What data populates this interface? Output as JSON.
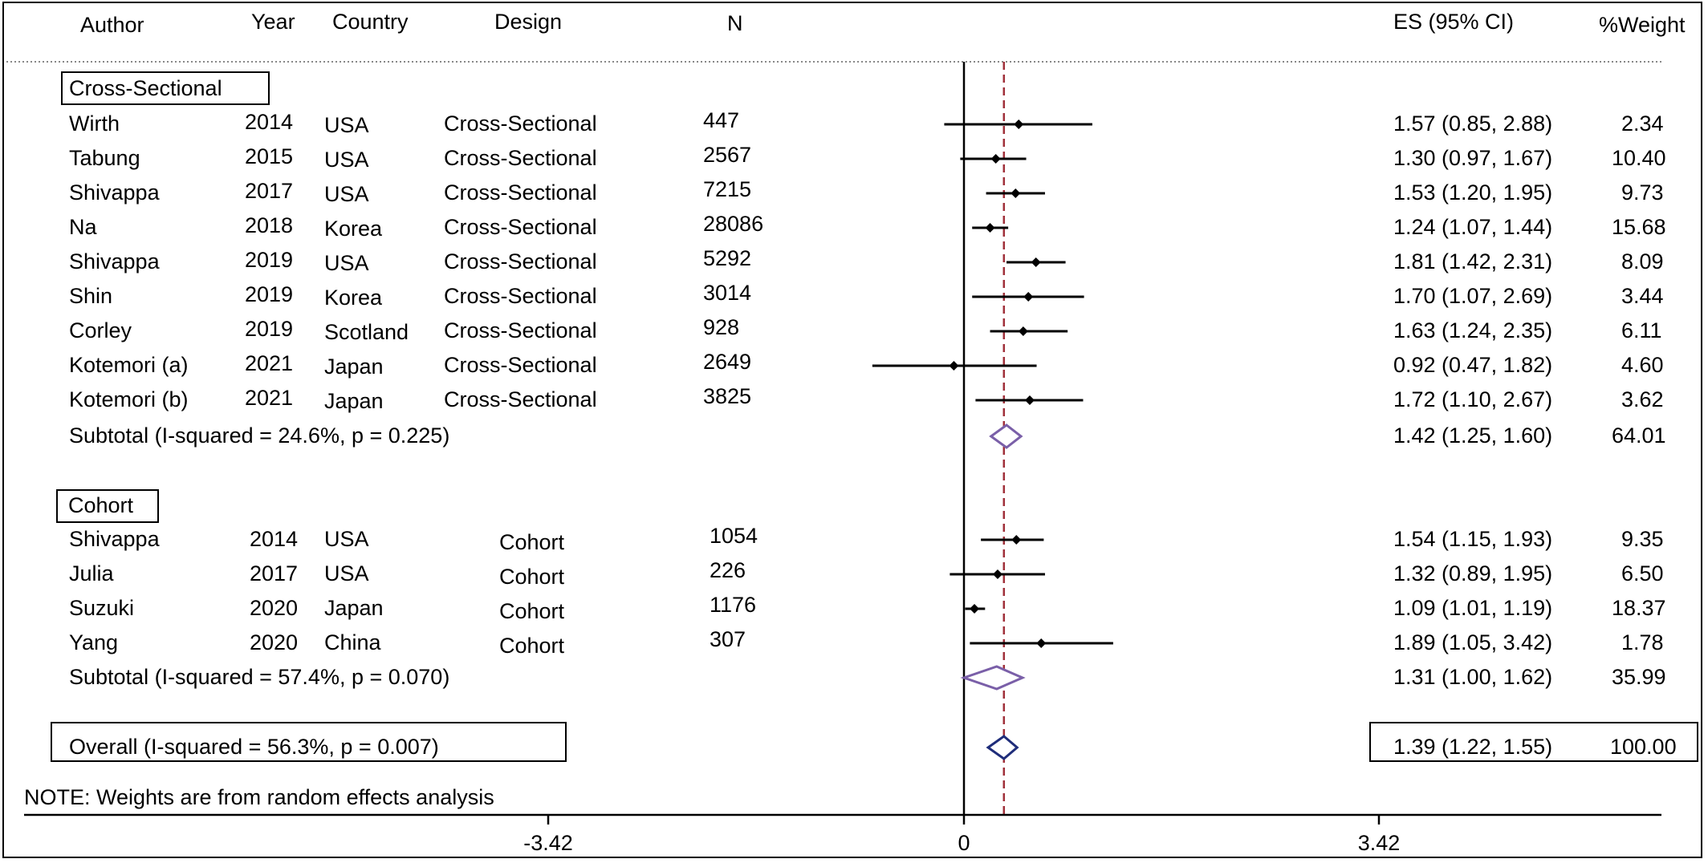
{
  "header": {
    "author": "Author",
    "year": "Year",
    "country": "Country",
    "design": "Design",
    "n": "N",
    "es": "ES (95% CI)",
    "weight": "%Weight"
  },
  "groups": [
    {
      "label": "Cross-Sectional",
      "studies": [
        {
          "author": "Wirth",
          "year": "2014",
          "country": "USA",
          "design": "Cross-Sectional",
          "n": "447",
          "es": "1.57 (0.85, 2.88)",
          "weight": "2.34"
        },
        {
          "author": "Tabung",
          "year": "2015",
          "country": "USA",
          "design": "Cross-Sectional",
          "n": "2567",
          "es": "1.30 (0.97, 1.67)",
          "weight": "10.40"
        },
        {
          "author": "Shivappa",
          "year": "2017",
          "country": "USA",
          "design": "Cross-Sectional",
          "n": "7215",
          "es": "1.53 (1.20, 1.95)",
          "weight": "9.73"
        },
        {
          "author": "Na",
          "year": "2018",
          "country": "Korea",
          "design": "Cross-Sectional",
          "n": "28086",
          "es": "1.24 (1.07, 1.44)",
          "weight": "15.68"
        },
        {
          "author": "Shivappa",
          "year": "2019",
          "country": "USA",
          "design": "Cross-Sectional",
          "n": "5292",
          "es": "1.81 (1.42, 2.31)",
          "weight": "8.09"
        },
        {
          "author": "Shin",
          "year": "2019",
          "country": "Korea",
          "design": "Cross-Sectional",
          "n": "3014",
          "es": "1.70 (1.07, 2.69)",
          "weight": "3.44"
        },
        {
          "author": "Corley",
          "year": "2019",
          "country": "Scotland",
          "design": "Cross-Sectional",
          "n": "928",
          "es": "1.63 (1.24, 2.35)",
          "weight": "6.11"
        },
        {
          "author": "Kotemori (a)",
          "year": "2021",
          "country": "Japan",
          "design": "Cross-Sectional",
          "n": "2649",
          "es": "0.92 (0.47, 1.82)",
          "weight": "4.60"
        },
        {
          "author": "Kotemori (b)",
          "year": "2021",
          "country": "Japan",
          "design": "Cross-Sectional",
          "n": "3825",
          "es": "1.72 (1.10, 2.67)",
          "weight": "3.62"
        }
      ],
      "subtotal": {
        "label": "Subtotal  (I-squared = 24.6%, p = 0.225)",
        "es": "1.42 (1.25, 1.60)",
        "weight": "64.01"
      }
    },
    {
      "label": "Cohort",
      "studies": [
        {
          "author": "Shivappa",
          "year": "2014",
          "country": "USA",
          "design": "Cohort",
          "n": "1054",
          "es": "1.54 (1.15, 1.93)",
          "weight": "9.35"
        },
        {
          "author": "Julia",
          "year": "2017",
          "country": "USA",
          "design": "Cohort",
          "n": "226",
          "es": "1.32 (0.89, 1.95)",
          "weight": "6.50"
        },
        {
          "author": "Suzuki",
          "year": "2020",
          "country": "Japan",
          "design": "Cohort",
          "n": "1176",
          "es": "1.09 (1.01, 1.19)",
          "weight": "18.37"
        },
        {
          "author": "Yang",
          "year": "2020",
          "country": "China",
          "design": "Cohort",
          "n": "307",
          "es": "1.89 (1.05, 3.42)",
          "weight": "1.78"
        }
      ],
      "subtotal": {
        "label": "Subtotal  (I-squared = 57.4%, p = 0.070)",
        "es": "1.31 (1.00, 1.62)",
        "weight": "35.99"
      }
    }
  ],
  "overall": {
    "label": "Overall  (I-squared = 56.3%, p = 0.007)",
    "es": "1.39 (1.22, 1.55)",
    "weight": "100.00"
  },
  "note": "NOTE: Weights are from random effects analysis",
  "axis": {
    "ticks": [
      "-3.42",
      "0",
      "3.42"
    ]
  },
  "colors": {
    "diamond_subtotal": "#7a5fa8",
    "diamond_overall": "#1f2d7a",
    "ref_line": "#a0303a",
    "marker": "#000000"
  },
  "chart_data": {
    "type": "forest",
    "scale": "log",
    "xlim": [
      0.0327,
      30.6
    ],
    "xticks": [
      -3.42,
      0,
      3.42
    ],
    "null_line": 1,
    "overall_line": 1.39,
    "rows": [
      {
        "label": "Wirth",
        "es": 1.57,
        "lo": 0.85,
        "hi": 2.88
      },
      {
        "label": "Tabung",
        "es": 1.3,
        "lo": 0.97,
        "hi": 1.67
      },
      {
        "label": "Shivappa",
        "es": 1.53,
        "lo": 1.2,
        "hi": 1.95
      },
      {
        "label": "Na",
        "es": 1.24,
        "lo": 1.07,
        "hi": 1.44
      },
      {
        "label": "Shivappa",
        "es": 1.81,
        "lo": 1.42,
        "hi": 2.31
      },
      {
        "label": "Shin",
        "es": 1.7,
        "lo": 1.07,
        "hi": 2.69
      },
      {
        "label": "Corley",
        "es": 1.63,
        "lo": 1.24,
        "hi": 2.35
      },
      {
        "label": "Kotemori (a)",
        "es": 0.92,
        "lo": 0.47,
        "hi": 1.82
      },
      {
        "label": "Kotemori (b)",
        "es": 1.72,
        "lo": 1.1,
        "hi": 2.67
      },
      {
        "label": "Subtotal",
        "es": 1.42,
        "lo": 1.25,
        "hi": 1.6,
        "kind": "subtotal"
      },
      {
        "label": "Shivappa",
        "es": 1.54,
        "lo": 1.15,
        "hi": 1.93
      },
      {
        "label": "Julia",
        "es": 1.32,
        "lo": 0.89,
        "hi": 1.95
      },
      {
        "label": "Suzuki",
        "es": 1.09,
        "lo": 1.01,
        "hi": 1.19
      },
      {
        "label": "Yang",
        "es": 1.89,
        "lo": 1.05,
        "hi": 3.42
      },
      {
        "label": "Subtotal",
        "es": 1.31,
        "lo": 1.0,
        "hi": 1.62,
        "kind": "subtotal"
      },
      {
        "label": "Overall",
        "es": 1.39,
        "lo": 1.22,
        "hi": 1.55,
        "kind": "overall"
      }
    ]
  }
}
